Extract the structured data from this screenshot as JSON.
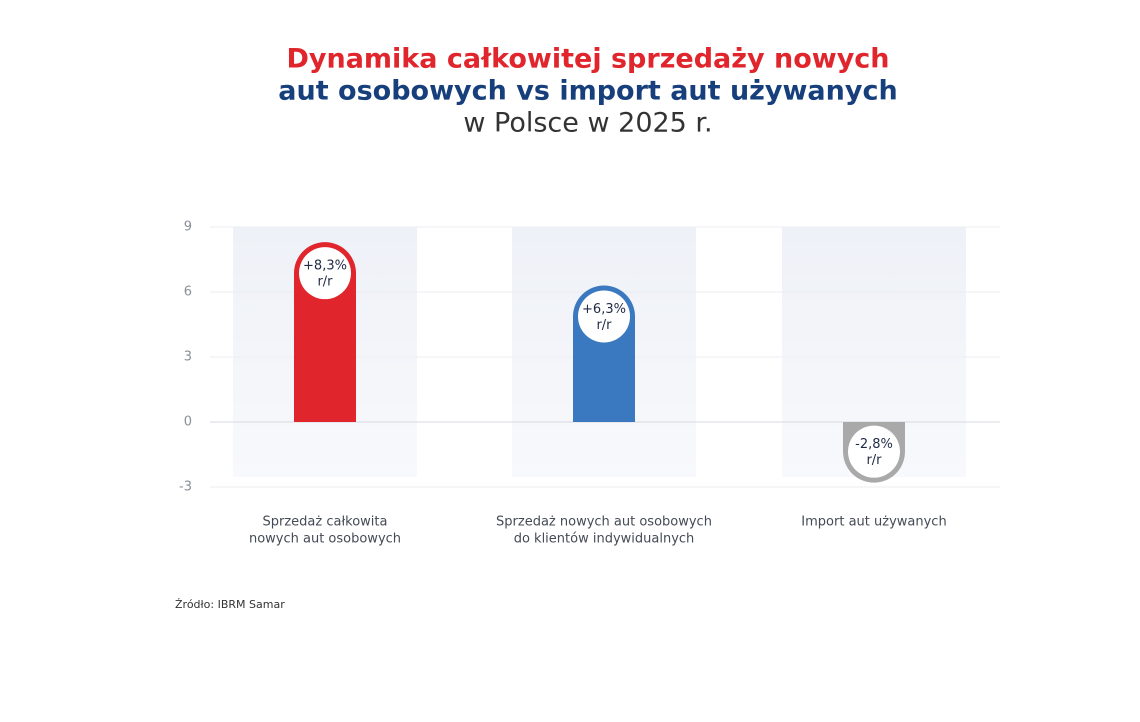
{
  "chart_data": {
    "type": "bar",
    "title": [
      "Dynamika całkowitej sprzedaży nowych",
      "aut osobowych vs import aut używanych",
      "w Polsce w 2025 r."
    ],
    "categories": [
      [
        "Sprzedaż całkowita",
        "nowych aut osobowych"
      ],
      [
        "Sprzedaż nowych aut osobowych",
        "do klientów indywidualnych"
      ],
      [
        "Import aut używanych"
      ]
    ],
    "values": [
      8.3,
      6.3,
      -2.8
    ],
    "value_labels": [
      "+8,3%",
      "+6,3%",
      "-2,8%"
    ],
    "value_unit": "r/r",
    "colors": [
      "#e0262c",
      "#3a78c0",
      "#a9a9a9"
    ],
    "ylim": [
      -3,
      9
    ],
    "yticks": [
      -3,
      0,
      3,
      6,
      9
    ],
    "grid": true,
    "source": "Źródło: IBRM Samar"
  }
}
